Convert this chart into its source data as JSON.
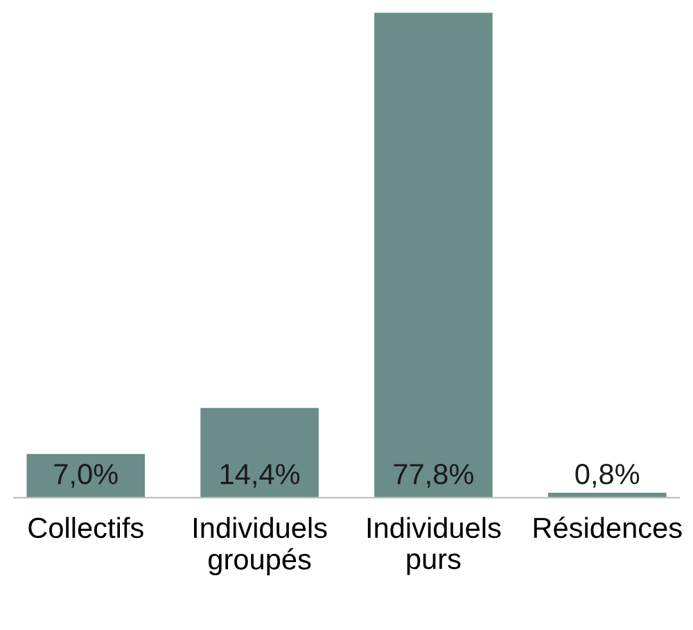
{
  "chart_data": {
    "type": "bar",
    "categories": [
      "Collectifs",
      "Individuels\ngroupés",
      "Individuels\npurs",
      "Résidences"
    ],
    "values": [
      7.0,
      14.4,
      77.8,
      0.8
    ],
    "value_labels": [
      "7,0%",
      "14,4%",
      "77,8%",
      "0,8%"
    ],
    "color": "#6b8d89"
  }
}
